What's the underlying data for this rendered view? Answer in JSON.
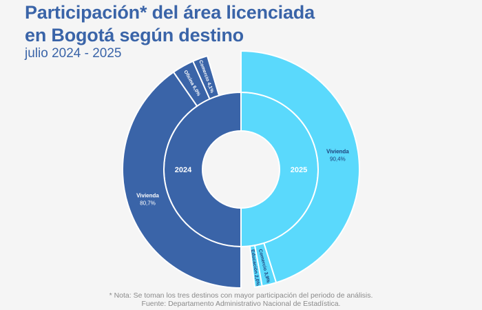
{
  "header": {
    "title_line1": "Participación* del área licenciada",
    "title_line2": "en Bogotá según destino",
    "subtitle": "julio 2024 - 2025"
  },
  "footer": {
    "note": "* Nota: Se toman los tres destinos con mayor participación del periodo de análisis.",
    "source": "Fuente: Departamento Administrativo Nacional de Estadística."
  },
  "colors": {
    "year2024": "#3a64a8",
    "year2025": "#5ad9fc",
    "separator": "#ffffff"
  },
  "chart_data": {
    "type": "nested-donut",
    "title": "Participación* del área licenciada en Bogotá según destino",
    "subtitle": "julio 2024 - 2025",
    "years": [
      "2024",
      "2025"
    ],
    "year_share": [
      {
        "label": "2024",
        "value": 50
      },
      {
        "label": "2025",
        "value": 50
      }
    ],
    "segments": [
      {
        "year": "2024",
        "name": "Vivienda",
        "value": 80.7,
        "value_label": "80,7%"
      },
      {
        "year": "2024",
        "name": "Oficina",
        "value": 6.0,
        "value_label": "6,0%"
      },
      {
        "year": "2024",
        "name": "Comercio",
        "value": 4.1,
        "value_label": "4,1%"
      },
      {
        "year": "2025",
        "name": "Vivienda",
        "value": 90.4,
        "value_label": "90,4%"
      },
      {
        "year": "2025",
        "name": "Comercio",
        "value": 3.9,
        "value_label": "3,9%"
      },
      {
        "year": "2025",
        "name": "Educación",
        "value": 2.0,
        "value_label": "2,0%"
      }
    ]
  }
}
